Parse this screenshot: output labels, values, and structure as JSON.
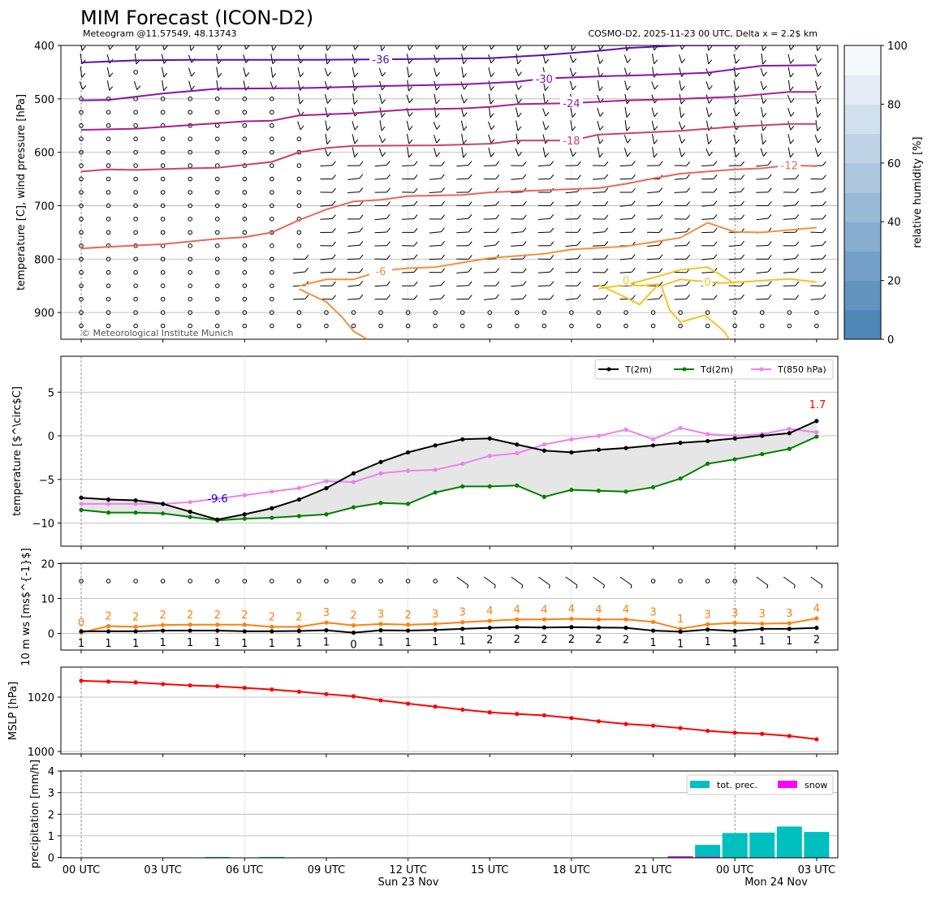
{
  "header": {
    "title": "MIM Forecast (ICON-D2)",
    "subtitle_left": "Meteogram @11.57549, 48.13743",
    "subtitle_right": "COSMO-D2, 2025-11-23 00 UTC, Delta x = 2.2$ km",
    "copyright": "© Meteorological Institute Munich"
  },
  "time_axis": {
    "ticks": [
      "00 UTC",
      "03 UTC",
      "06 UTC",
      "09 UTC",
      "12 UTC",
      "15 UTC",
      "18 UTC",
      "21 UTC",
      "00 UTC",
      "03 UTC"
    ],
    "day1": "Sun 23 Nov",
    "day2": "Mon 24 Nov"
  },
  "colors": {
    "t2m": "#000000",
    "td2m": "#008000",
    "t850": "#ee82ee",
    "wind_max": "#ff7f0e",
    "mslp": "#ff0000",
    "precip": "#00bfbf",
    "snow": "#ff00ff",
    "label_max": "#ff0000",
    "label_min": "#0000ff",
    "rh_low": "#4f87b9",
    "rh_high": "#f6f9fc"
  },
  "chart_data": [
    {
      "type": "contour",
      "name": "upper-air",
      "ylabel": "temperature [C], wind pressure [hPa]",
      "y_ticks": [
        400,
        500,
        600,
        700,
        800,
        900
      ],
      "ylim": [
        950,
        400
      ],
      "colorbar": {
        "label": "relative humidity [%]",
        "ticks": [
          0,
          20,
          40,
          60,
          80,
          100
        ]
      },
      "isotherm_labels": [
        "-36",
        "-30",
        "-24",
        "-18",
        "-12",
        "-6",
        "0",
        "0"
      ]
    },
    {
      "type": "line",
      "name": "temperature",
      "ylabel": "temperature [$^\\circ$C]",
      "y_ticks": [
        "−10",
        "−5",
        "0",
        "5"
      ],
      "ylim": [
        -12.5,
        9
      ],
      "x_hours": [
        0,
        1,
        2,
        3,
        4,
        5,
        6,
        7,
        8,
        9,
        10,
        11,
        12,
        13,
        14,
        15,
        16,
        17,
        18,
        19,
        20,
        21,
        22,
        23,
        24,
        25,
        26,
        27
      ],
      "series": [
        {
          "name": "T(2m)",
          "values": [
            -7.1,
            -7.3,
            -7.4,
            -7.8,
            -8.7,
            -9.6,
            -9.0,
            -8.3,
            -7.3,
            -6.0,
            -4.3,
            -3.0,
            -1.9,
            -1.1,
            -0.4,
            -0.3,
            -1.0,
            -1.7,
            -1.9,
            -1.6,
            -1.4,
            -1.1,
            -0.8,
            -0.6,
            -0.3,
            0.0,
            0.3,
            1.7
          ]
        },
        {
          "name": "Td(2m)",
          "values": [
            -8.5,
            -8.8,
            -8.8,
            -8.9,
            -9.3,
            -9.7,
            -9.5,
            -9.4,
            -9.2,
            -9.0,
            -8.2,
            -7.7,
            -7.8,
            -6.5,
            -5.8,
            -5.8,
            -5.7,
            -7.0,
            -6.2,
            -6.3,
            -6.4,
            -5.9,
            -4.9,
            -3.2,
            -2.7,
            -2.1,
            -1.5,
            -0.1
          ]
        },
        {
          "name": "T(850 hPa)",
          "values": [
            -7.8,
            -7.8,
            -7.8,
            -7.8,
            -7.6,
            -7.2,
            -6.8,
            -6.4,
            -6.0,
            -5.2,
            -5.3,
            -4.3,
            -4.0,
            -3.9,
            -3.2,
            -2.3,
            -2.0,
            -1.0,
            -0.4,
            0.0,
            0.7,
            -0.4,
            0.9,
            0.2,
            0.0,
            0.2,
            0.8,
            0.4
          ]
        }
      ],
      "annotations": {
        "max_label": "1.7",
        "min_label": "-9.6"
      }
    },
    {
      "type": "line",
      "name": "wind",
      "ylabel": "10 m ws [ms$^{-1}$]",
      "y_ticks": [
        "0",
        "10",
        "20"
      ],
      "ylim": [
        -5,
        20
      ],
      "series": [
        {
          "name": "mean",
          "values": [
            0.6,
            0.6,
            0.6,
            0.8,
            0.8,
            0.8,
            0.6,
            0.6,
            0.7,
            0.9,
            0.2,
            0.9,
            0.8,
            1.0,
            1.3,
            1.6,
            1.8,
            1.7,
            1.8,
            1.7,
            1.6,
            0.8,
            0.5,
            1.1,
            0.7,
            1.3,
            1.3,
            1.6
          ]
        },
        {
          "name": "gust",
          "values": [
            0.2,
            2.1,
            1.9,
            2.4,
            2.5,
            2.5,
            2.5,
            1.9,
            1.9,
            3.1,
            2.3,
            2.7,
            2.5,
            2.7,
            3.2,
            3.6,
            4.0,
            4.0,
            4.2,
            4.0,
            4.0,
            3.3,
            1.3,
            2.6,
            3.0,
            2.8,
            2.9,
            4.3
          ]
        }
      ],
      "gust_labels": [
        "0",
        "2",
        "2",
        "2",
        "2",
        "2",
        "2",
        "2",
        "2",
        "3",
        "2",
        "3",
        "2",
        "3",
        "3",
        "4",
        "4",
        "4",
        "4",
        "4",
        "4",
        "3",
        "1",
        "3",
        "3",
        "3",
        "3",
        "4"
      ],
      "mean_labels": [
        "1",
        "1",
        "1",
        "1",
        "1",
        "1",
        "1",
        "1",
        "1",
        "1",
        "0",
        "1",
        "1",
        "1",
        "1",
        "2",
        "2",
        "2",
        "2",
        "2",
        "2",
        "1",
        "1",
        "1",
        "1",
        "1",
        "1",
        "2"
      ]
    },
    {
      "type": "line",
      "name": "mslp",
      "ylabel": "MSLP [hPa]",
      "y_ticks": [
        "1000",
        "1020"
      ],
      "ylim": [
        999,
        1031
      ],
      "series": [
        {
          "name": "MSLP",
          "values": [
            1026.0,
            1025.7,
            1025.4,
            1024.8,
            1024.3,
            1024.0,
            1023.4,
            1022.8,
            1022.0,
            1021.1,
            1020.3,
            1018.8,
            1017.6,
            1016.5,
            1015.4,
            1014.4,
            1013.8,
            1013.3,
            1012.3,
            1011.1,
            1010.1,
            1009.5,
            1008.6,
            1007.6,
            1006.9,
            1006.5,
            1005.7,
            1004.5
          ]
        }
      ]
    },
    {
      "type": "bar",
      "name": "precipitation",
      "ylabel": "precipitation [mm/h]",
      "y_ticks": [
        "0",
        "1",
        "2",
        "3",
        "4"
      ],
      "ylim": [
        0,
        4
      ],
      "series": [
        {
          "name": "tot. prec.",
          "values": [
            0,
            0,
            0,
            0,
            0,
            0.02,
            0,
            0.02,
            0,
            0,
            0,
            0,
            0,
            0,
            0,
            0,
            0,
            0,
            0,
            0,
            0,
            0,
            0.06,
            0.58,
            1.13,
            1.15,
            1.43,
            1.18
          ]
        },
        {
          "name": "snow",
          "values": [
            0,
            0,
            0,
            0,
            0,
            0,
            0,
            0,
            0,
            0,
            0,
            0,
            0,
            0,
            0,
            0,
            0,
            0,
            0,
            0,
            0,
            0,
            0.04,
            0.03,
            0,
            0,
            0,
            0
          ]
        }
      ]
    }
  ]
}
